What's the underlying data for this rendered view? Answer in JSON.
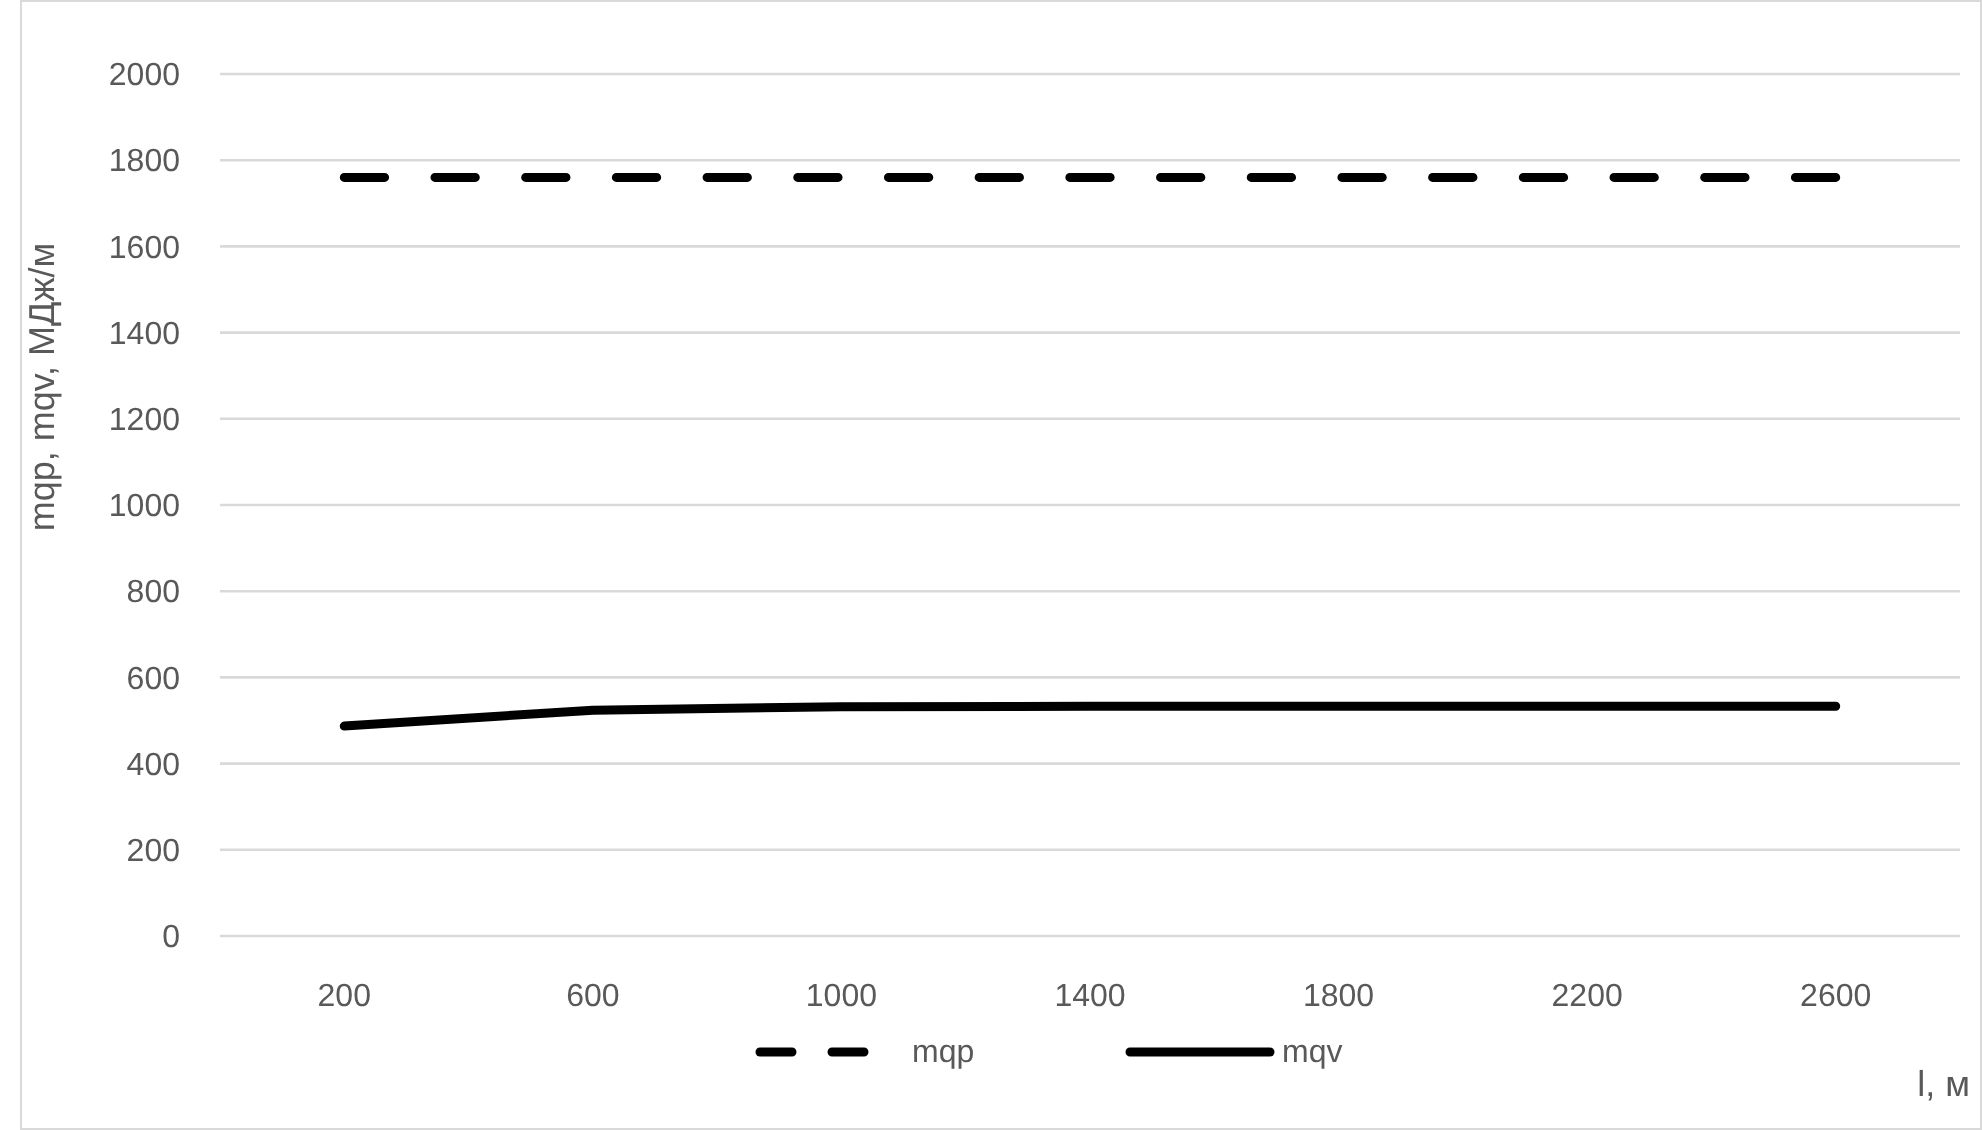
{
  "chart_data": {
    "type": "line",
    "xlabel": "l, м",
    "ylabel": "mqp, mqv, МДж/м",
    "categories": [
      "200",
      "600",
      "1000",
      "1400",
      "1800",
      "2200",
      "2600"
    ],
    "series": [
      {
        "name": "mqp",
        "color": "#000000",
        "line_style": "dashed",
        "values": [
          1760,
          1760,
          1760,
          1760,
          1760,
          1760,
          1760
        ]
      },
      {
        "name": "mqv",
        "color": "#000000",
        "line_style": "solid",
        "values": [
          487,
          524,
          532,
          533,
          533,
          533,
          533
        ]
      }
    ],
    "ylim": [
      0,
      2000
    ],
    "yticks": [
      0,
      200,
      400,
      600,
      800,
      1000,
      1200,
      1400,
      1600,
      1800,
      2000
    ],
    "grid": "y",
    "legend": "bottom",
    "marker": "none"
  }
}
